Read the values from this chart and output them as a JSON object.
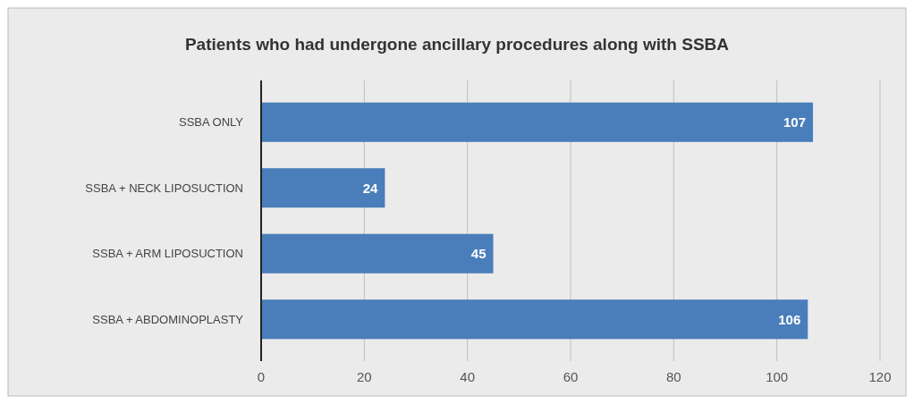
{
  "chart_data": {
    "type": "bar",
    "orientation": "horizontal",
    "title": "Patients who had undergone ancillary procedures along with SSBA",
    "categories": [
      "SSBA ONLY",
      "SSBA + NECK LIPOSUCTION",
      "SSBA + ARM LIPOSUCTION",
      "SSBA + ABDOMINOPLASTY"
    ],
    "values": [
      107,
      24,
      45,
      106
    ],
    "color": "#4a7ebb",
    "xlim": [
      0,
      120
    ],
    "xticks": [
      0,
      20,
      40,
      60,
      80,
      100,
      120
    ],
    "grid": "x",
    "data_labels": true
  }
}
